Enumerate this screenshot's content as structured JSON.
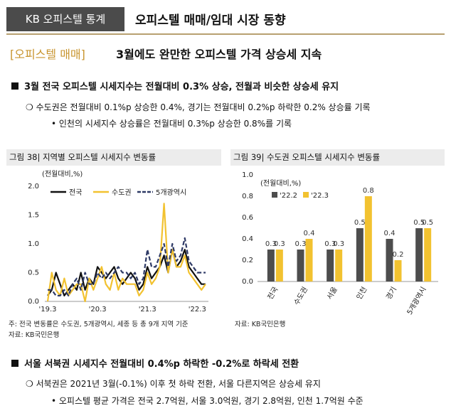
{
  "header": {
    "badge": "KB 오피스텔 통계",
    "title": "오피스텔 매매/임대 시장 동향"
  },
  "section": {
    "tag": "[오피스텔 매매]",
    "title": "3월에도 완만한 오피스텔 가격 상승세 지속"
  },
  "bullets": {
    "b1": "3월 전국 오피스텔 시세지수는 전월대비 0.3% 상승, 전월과 비슷한 상승세 유지",
    "b1_sub": "❍ 수도권은 전월대비 0.1%p 상승한 0.4%, 경기는 전월대비 0.2%p 하락한 0.2% 상승률 기록",
    "b1_sub2": "• 인천의 시세지수 상승률은 전월대비 0.3%p 상승한 0.8%를 기록",
    "b2": "서울 서북권 시세지수 전월대비 0.4%p 하락한 -0.2%로 하락세 전환",
    "b2_sub": "❍ 서북권은 2021년 3월(-0.1%) 이후 첫 하락 전환, 서울 다른지역은 상승세 유지",
    "b2_sub2": "•  오피스텔 평균 가격은 전국 2.7억원, 서울 3.0억원, 경기 2.8억원, 인천 1.7억원 수준"
  },
  "fig38": {
    "caption": "그림 38| 지역별 오피스텔 시세지수 변동률",
    "note1": "주: 전국 변동률은 수도권, 5개광역시, 세종 등 총 9개 지역 기준",
    "note2": "자료: KB국민은행"
  },
  "fig39": {
    "caption": "그림 39| 수도권 오피스텔 시세지수 변동률",
    "note": "자료: KB국민은행"
  },
  "chart_data": [
    {
      "type": "line",
      "ylabel": "(전월대비,%)",
      "ylim": [
        0.0,
        2.0
      ],
      "yticks": [
        "0.0",
        "0.5",
        "1.0",
        "1.5",
        "2.0"
      ],
      "xticks": [
        "'19.3",
        "'20.3",
        "'21.3",
        "'22.3"
      ],
      "legend": "top",
      "series": [
        {
          "name": "전국",
          "color": "#111111",
          "dash": "solid",
          "values": [
            0.1,
            0.2,
            0.5,
            0.3,
            0.1,
            0.2,
            0.3,
            0.2,
            0.5,
            0.2,
            0.4,
            0.3,
            0.6,
            0.5,
            0.4,
            0.5,
            0.6,
            0.4,
            0.3,
            0.4,
            0.5,
            0.4,
            0.2,
            0.3,
            0.6,
            0.4,
            0.5,
            0.6,
            0.8,
            0.5,
            0.9,
            0.6,
            0.7,
            0.9,
            0.6,
            0.5,
            0.4,
            0.3,
            0.3
          ]
        },
        {
          "name": "수도권",
          "color": "#f2c230",
          "dash": "solid",
          "values": [
            0.0,
            0.5,
            0.2,
            0.1,
            0.4,
            0.1,
            0.2,
            0.3,
            0.3,
            0.0,
            0.4,
            0.2,
            0.4,
            0.6,
            0.3,
            0.2,
            0.5,
            0.2,
            0.4,
            0.3,
            0.3,
            0.3,
            0.1,
            0.2,
            0.5,
            0.3,
            0.4,
            0.6,
            1.7,
            0.5,
            0.9,
            0.6,
            0.6,
            0.8,
            0.5,
            0.4,
            0.3,
            0.2,
            0.3
          ]
        },
        {
          "name": "5개광역시",
          "color": "#2e3a66",
          "dash": "dashed",
          "values": [
            0.2,
            0.2,
            0.1,
            0.1,
            0.2,
            0.1,
            0.3,
            0.4,
            0.2,
            0.5,
            0.3,
            0.3,
            0.5,
            0.4,
            0.5,
            0.4,
            0.5,
            0.6,
            0.5,
            0.5,
            0.4,
            0.5,
            0.3,
            0.4,
            0.9,
            0.6,
            0.6,
            0.8,
            1.0,
            0.6,
            1.0,
            0.7,
            0.8,
            1.1,
            0.7,
            0.6,
            0.5,
            0.5,
            0.5
          ]
        }
      ]
    },
    {
      "type": "bar",
      "ylabel": "(전월대비,%)",
      "ylim": [
        0.0,
        1.0
      ],
      "yticks": [
        "0.0",
        "0.2",
        "0.4",
        "0.6",
        "0.8",
        "1.0"
      ],
      "categories": [
        "전국",
        "수도권",
        "서울",
        "인천",
        "경기",
        "5개광역시"
      ],
      "legend": "top-left",
      "series": [
        {
          "name": "'22.2",
          "color": "#4d4d4d",
          "values": [
            0.3,
            0.3,
            0.3,
            0.5,
            0.4,
            0.5
          ],
          "labels": [
            "0.3",
            "0.3",
            "0.3",
            "0.5",
            "0.4",
            "0.5"
          ]
        },
        {
          "name": "'22.3",
          "color": "#f2c230",
          "values": [
            0.3,
            0.4,
            0.3,
            0.8,
            0.2,
            0.5
          ],
          "labels": [
            "0.3",
            "0.4",
            "0.3",
            "0.8",
            "0.2",
            "0.5"
          ]
        }
      ]
    }
  ]
}
